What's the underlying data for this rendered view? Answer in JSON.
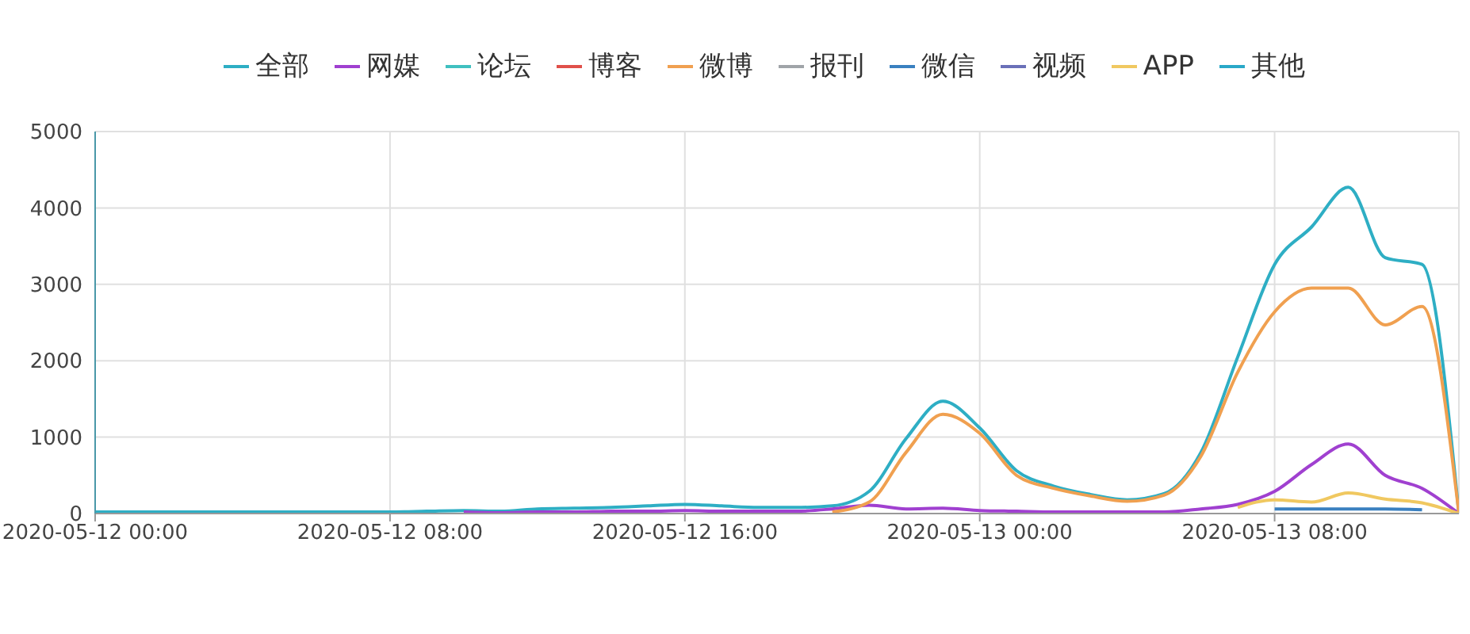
{
  "chart_data": {
    "type": "line",
    "x": [
      "2020-05-12T00:00",
      "2020-05-12T01:00",
      "2020-05-12T02:00",
      "2020-05-12T03:00",
      "2020-05-12T04:00",
      "2020-05-12T05:00",
      "2020-05-12T06:00",
      "2020-05-12T07:00",
      "2020-05-12T08:00",
      "2020-05-12T09:00",
      "2020-05-12T10:00",
      "2020-05-12T11:00",
      "2020-05-12T12:00",
      "2020-05-12T13:00",
      "2020-05-12T14:00",
      "2020-05-12T15:00",
      "2020-05-12T16:00",
      "2020-05-12T17:00",
      "2020-05-12T18:00",
      "2020-05-12T19:00",
      "2020-05-12T20:00",
      "2020-05-12T21:00",
      "2020-05-12T22:00",
      "2020-05-12T23:00",
      "2020-05-13T00:00",
      "2020-05-13T01:00",
      "2020-05-13T02:00",
      "2020-05-13T03:00",
      "2020-05-13T04:00",
      "2020-05-13T05:00",
      "2020-05-13T06:00",
      "2020-05-13T07:00",
      "2020-05-13T08:00",
      "2020-05-13T09:00",
      "2020-05-13T10:00",
      "2020-05-13T11:00",
      "2020-05-13T12:00",
      "2020-05-13T13:00"
    ],
    "series": [
      {
        "name": "全部",
        "color": "#2eaec4",
        "values": [
          20,
          20,
          20,
          20,
          20,
          20,
          20,
          20,
          20,
          30,
          40,
          30,
          60,
          70,
          80,
          100,
          120,
          100,
          80,
          80,
          100,
          290,
          980,
          1470,
          1120,
          560,
          360,
          250,
          180,
          260,
          800,
          2050,
          3260,
          3750,
          4270,
          3350,
          3260,
          0
        ]
      },
      {
        "name": "网媒",
        "color": "#a040d0",
        "values": [
          null,
          null,
          null,
          null,
          null,
          null,
          null,
          null,
          null,
          null,
          20,
          10,
          20,
          20,
          30,
          30,
          40,
          30,
          30,
          30,
          60,
          110,
          60,
          70,
          40,
          30,
          20,
          20,
          20,
          20,
          60,
          120,
          290,
          640,
          910,
          500,
          330,
          0
        ]
      },
      {
        "name": "论坛",
        "color": "#40c0c0",
        "values": [
          null,
          null,
          null,
          null,
          null,
          null,
          null,
          null,
          null,
          null,
          null,
          null,
          null,
          null,
          null,
          null,
          null,
          null,
          null,
          null,
          null,
          null,
          null,
          null,
          null,
          null,
          null,
          null,
          null,
          null,
          null,
          null,
          null,
          null,
          null,
          null,
          null,
          null
        ]
      },
      {
        "name": "博客",
        "color": "#e0504a",
        "values": [
          null,
          null,
          null,
          null,
          null,
          null,
          null,
          null,
          null,
          null,
          null,
          null,
          null,
          null,
          null,
          null,
          null,
          null,
          null,
          null,
          null,
          null,
          null,
          null,
          null,
          null,
          null,
          null,
          null,
          null,
          null,
          null,
          null,
          null,
          null,
          null,
          null,
          null
        ]
      },
      {
        "name": "微博",
        "color": "#f0a050",
        "values": [
          null,
          null,
          null,
          null,
          null,
          null,
          null,
          null,
          null,
          null,
          null,
          null,
          null,
          null,
          null,
          null,
          null,
          null,
          null,
          null,
          20,
          150,
          800,
          1300,
          1050,
          500,
          330,
          230,
          160,
          240,
          750,
          1850,
          2640,
          2950,
          2950,
          2470,
          2710,
          0
        ]
      },
      {
        "name": "报刊",
        "color": "#a0a4a8",
        "values": [
          null,
          null,
          null,
          null,
          null,
          null,
          null,
          null,
          null,
          null,
          null,
          null,
          null,
          null,
          null,
          null,
          null,
          null,
          null,
          null,
          null,
          null,
          null,
          null,
          null,
          null,
          null,
          null,
          null,
          null,
          null,
          null,
          null,
          null,
          null,
          null,
          null,
          null
        ]
      },
      {
        "name": "微信",
        "color": "#3a80c0",
        "values": [
          null,
          null,
          null,
          null,
          null,
          null,
          null,
          null,
          null,
          null,
          null,
          null,
          null,
          null,
          null,
          null,
          null,
          null,
          null,
          null,
          null,
          null,
          null,
          null,
          null,
          null,
          null,
          null,
          null,
          null,
          null,
          null,
          60,
          60,
          60,
          60,
          50,
          null
        ]
      },
      {
        "name": "视频",
        "color": "#6a70b8",
        "values": [
          null,
          null,
          null,
          null,
          null,
          null,
          null,
          null,
          null,
          null,
          null,
          null,
          null,
          null,
          null,
          null,
          null,
          null,
          null,
          null,
          null,
          null,
          null,
          null,
          null,
          null,
          null,
          null,
          null,
          null,
          null,
          null,
          null,
          null,
          null,
          null,
          null,
          null
        ]
      },
      {
        "name": "APP",
        "color": "#f0c860",
        "values": [
          null,
          null,
          null,
          null,
          null,
          null,
          null,
          null,
          null,
          null,
          null,
          null,
          null,
          null,
          null,
          null,
          null,
          null,
          null,
          null,
          null,
          null,
          null,
          null,
          null,
          null,
          null,
          null,
          null,
          null,
          null,
          80,
          180,
          150,
          270,
          190,
          140,
          0
        ]
      },
      {
        "name": "其他",
        "color": "#2aa8c8",
        "values": [
          null,
          null,
          null,
          null,
          null,
          null,
          null,
          null,
          null,
          null,
          null,
          null,
          null,
          null,
          null,
          null,
          null,
          null,
          null,
          null,
          null,
          null,
          null,
          null,
          null,
          null,
          null,
          null,
          null,
          null,
          null,
          null,
          null,
          null,
          null,
          null,
          null,
          null
        ]
      }
    ],
    "xlim": [
      "2020-05-12T00:00",
      "2020-05-13T13:00"
    ],
    "xticks": [
      {
        "value": "2020-05-12T00:00",
        "label": "2020-05-12 00:00"
      },
      {
        "value": "2020-05-12T08:00",
        "label": "2020-05-12 08:00"
      },
      {
        "value": "2020-05-12T16:00",
        "label": "2020-05-12 16:00"
      },
      {
        "value": "2020-05-13T00:00",
        "label": "2020-05-13 00:00"
      },
      {
        "value": "2020-05-13T08:00",
        "label": "2020-05-13 08:00"
      }
    ],
    "ylim": [
      0,
      5000
    ],
    "yticks": [
      0,
      1000,
      2000,
      3000,
      4000,
      5000
    ],
    "grid": true,
    "legend": "top",
    "marker": "none",
    "line_style": "solid"
  }
}
